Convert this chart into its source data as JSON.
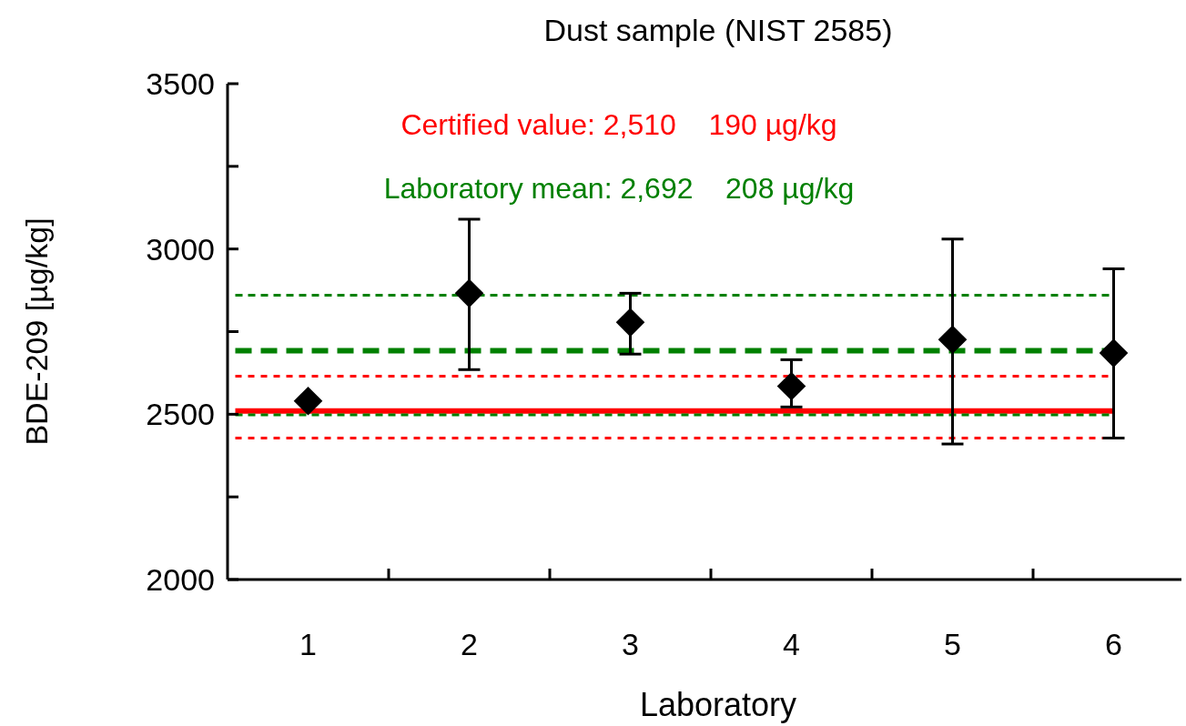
{
  "chart_data": {
    "type": "scatter",
    "title": "Dust sample (NIST 2585)",
    "xlabel": "Laboratory",
    "ylabel": "BDE-209 [µg/kg]",
    "categories": [
      "1",
      "2",
      "3",
      "4",
      "5",
      "6"
    ],
    "series": [
      {
        "color": "#000000",
        "values": [
          2540,
          2866,
          2778,
          2585,
          2726,
          2685
        ],
        "errors": [
          null,
          [
            2635,
            3090
          ],
          [
            2682,
            2866
          ],
          [
            2522,
            2665
          ],
          [
            2410,
            3030
          ],
          [
            2428,
            2940
          ]
        ]
      }
    ],
    "marker": "diamond",
    "grid": false,
    "ylim": [
      2000,
      3500
    ],
    "yticks": [
      2000,
      {
        "value": 2250,
        "label": null
      },
      2500,
      {
        "value": 2750,
        "label": null
      },
      3000,
      {
        "value": 3250,
        "label": null
      },
      3500
    ],
    "ref_lines": [
      {
        "axis": "y",
        "value": 2510,
        "label": "Certified value: 2,510    190 µg/kg",
        "color": "#ff0000",
        "line_style": "solid"
      },
      {
        "axis": "y",
        "value": 2615,
        "color": "#ff0000",
        "line_style": "dotted"
      },
      {
        "axis": "y",
        "value": 2428,
        "color": "#ff0000",
        "line_style": "dotted"
      },
      {
        "axis": "y",
        "value": 2692,
        "label": "Laboratory mean: 2,692    208 µg/kg",
        "color": "#008000",
        "line_style": "dashed"
      },
      {
        "axis": "y",
        "value": 2860,
        "color": "#008000",
        "line_style": "dashed"
      },
      {
        "axis": "y",
        "value": 2498,
        "color": "#008000",
        "line_style": "dashed"
      }
    ]
  }
}
